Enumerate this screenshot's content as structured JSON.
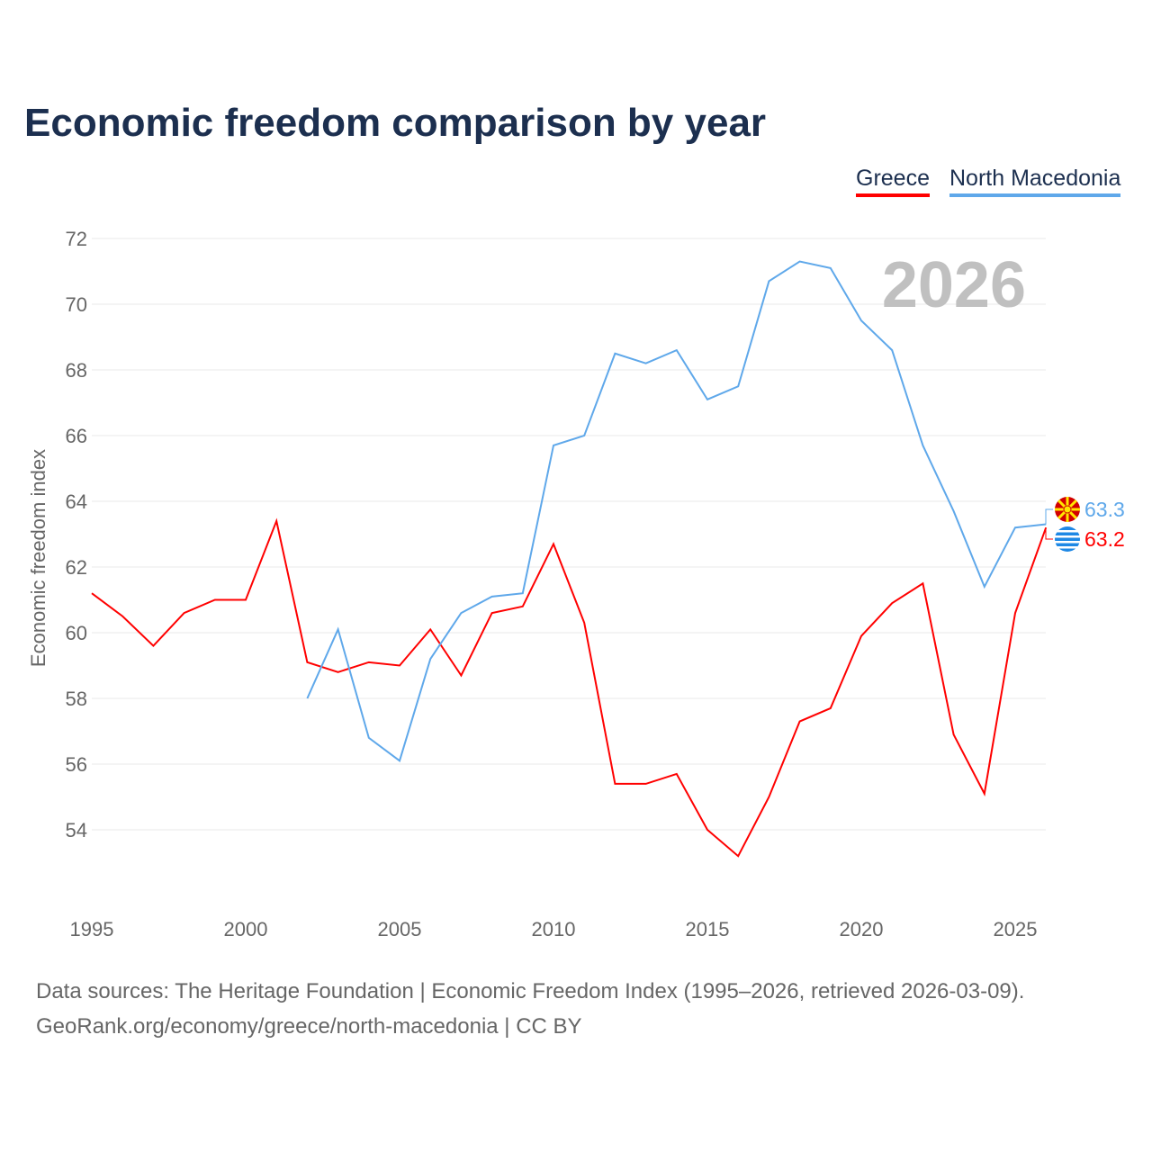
{
  "chart_data": {
    "type": "line",
    "title": "Economic freedom comparison by year",
    "xlabel": "",
    "ylabel": "Economic freedom index",
    "xlim": [
      1995,
      2026
    ],
    "ylim": [
      52,
      72
    ],
    "x_ticks": [
      "1995",
      "2000",
      "2005",
      "2010",
      "2015",
      "2020",
      "2025"
    ],
    "y_ticks": [
      "54",
      "56",
      "58",
      "60",
      "62",
      "64",
      "66",
      "68",
      "70",
      "72"
    ],
    "grid": true,
    "legend_position": "top-right",
    "annotation": "2026",
    "series": [
      {
        "name": "Greece",
        "color": "#ff0000",
        "end_label": "63.2",
        "x": [
          1995,
          1996,
          1997,
          1998,
          1999,
          2000,
          2001,
          2002,
          2003,
          2004,
          2005,
          2006,
          2007,
          2008,
          2009,
          2010,
          2011,
          2012,
          2013,
          2014,
          2015,
          2016,
          2017,
          2018,
          2019,
          2020,
          2021,
          2022,
          2023,
          2024,
          2025,
          2026
        ],
        "values": [
          61.2,
          60.5,
          59.6,
          60.6,
          61.0,
          61.0,
          63.4,
          59.1,
          58.8,
          59.1,
          59.0,
          60.1,
          58.7,
          60.6,
          60.8,
          62.7,
          60.3,
          55.4,
          55.4,
          55.7,
          54.0,
          53.2,
          55.0,
          57.3,
          57.7,
          59.9,
          60.9,
          61.5,
          56.9,
          55.1,
          60.6,
          63.2
        ]
      },
      {
        "name": "North Macedonia",
        "color": "#5fa8ea",
        "end_label": "63.3",
        "x": [
          2002,
          2003,
          2004,
          2005,
          2006,
          2007,
          2008,
          2009,
          2010,
          2011,
          2012,
          2013,
          2014,
          2015,
          2016,
          2017,
          2018,
          2019,
          2020,
          2021,
          2022,
          2023,
          2024,
          2025,
          2026
        ],
        "values": [
          58.0,
          60.1,
          56.8,
          56.1,
          59.2,
          60.6,
          61.1,
          61.2,
          65.7,
          66.0,
          68.5,
          68.2,
          68.6,
          67.1,
          67.5,
          70.7,
          71.3,
          71.1,
          69.5,
          68.6,
          65.7,
          63.7,
          61.4,
          63.2,
          63.3
        ]
      }
    ]
  },
  "sources": {
    "line1": "Data sources: The Heritage Foundation | Economic Freedom Index (1995–2026, retrieved 2026-03-09).",
    "line2": "GeoRank.org/economy/greece/north-macedonia | CC BY"
  }
}
